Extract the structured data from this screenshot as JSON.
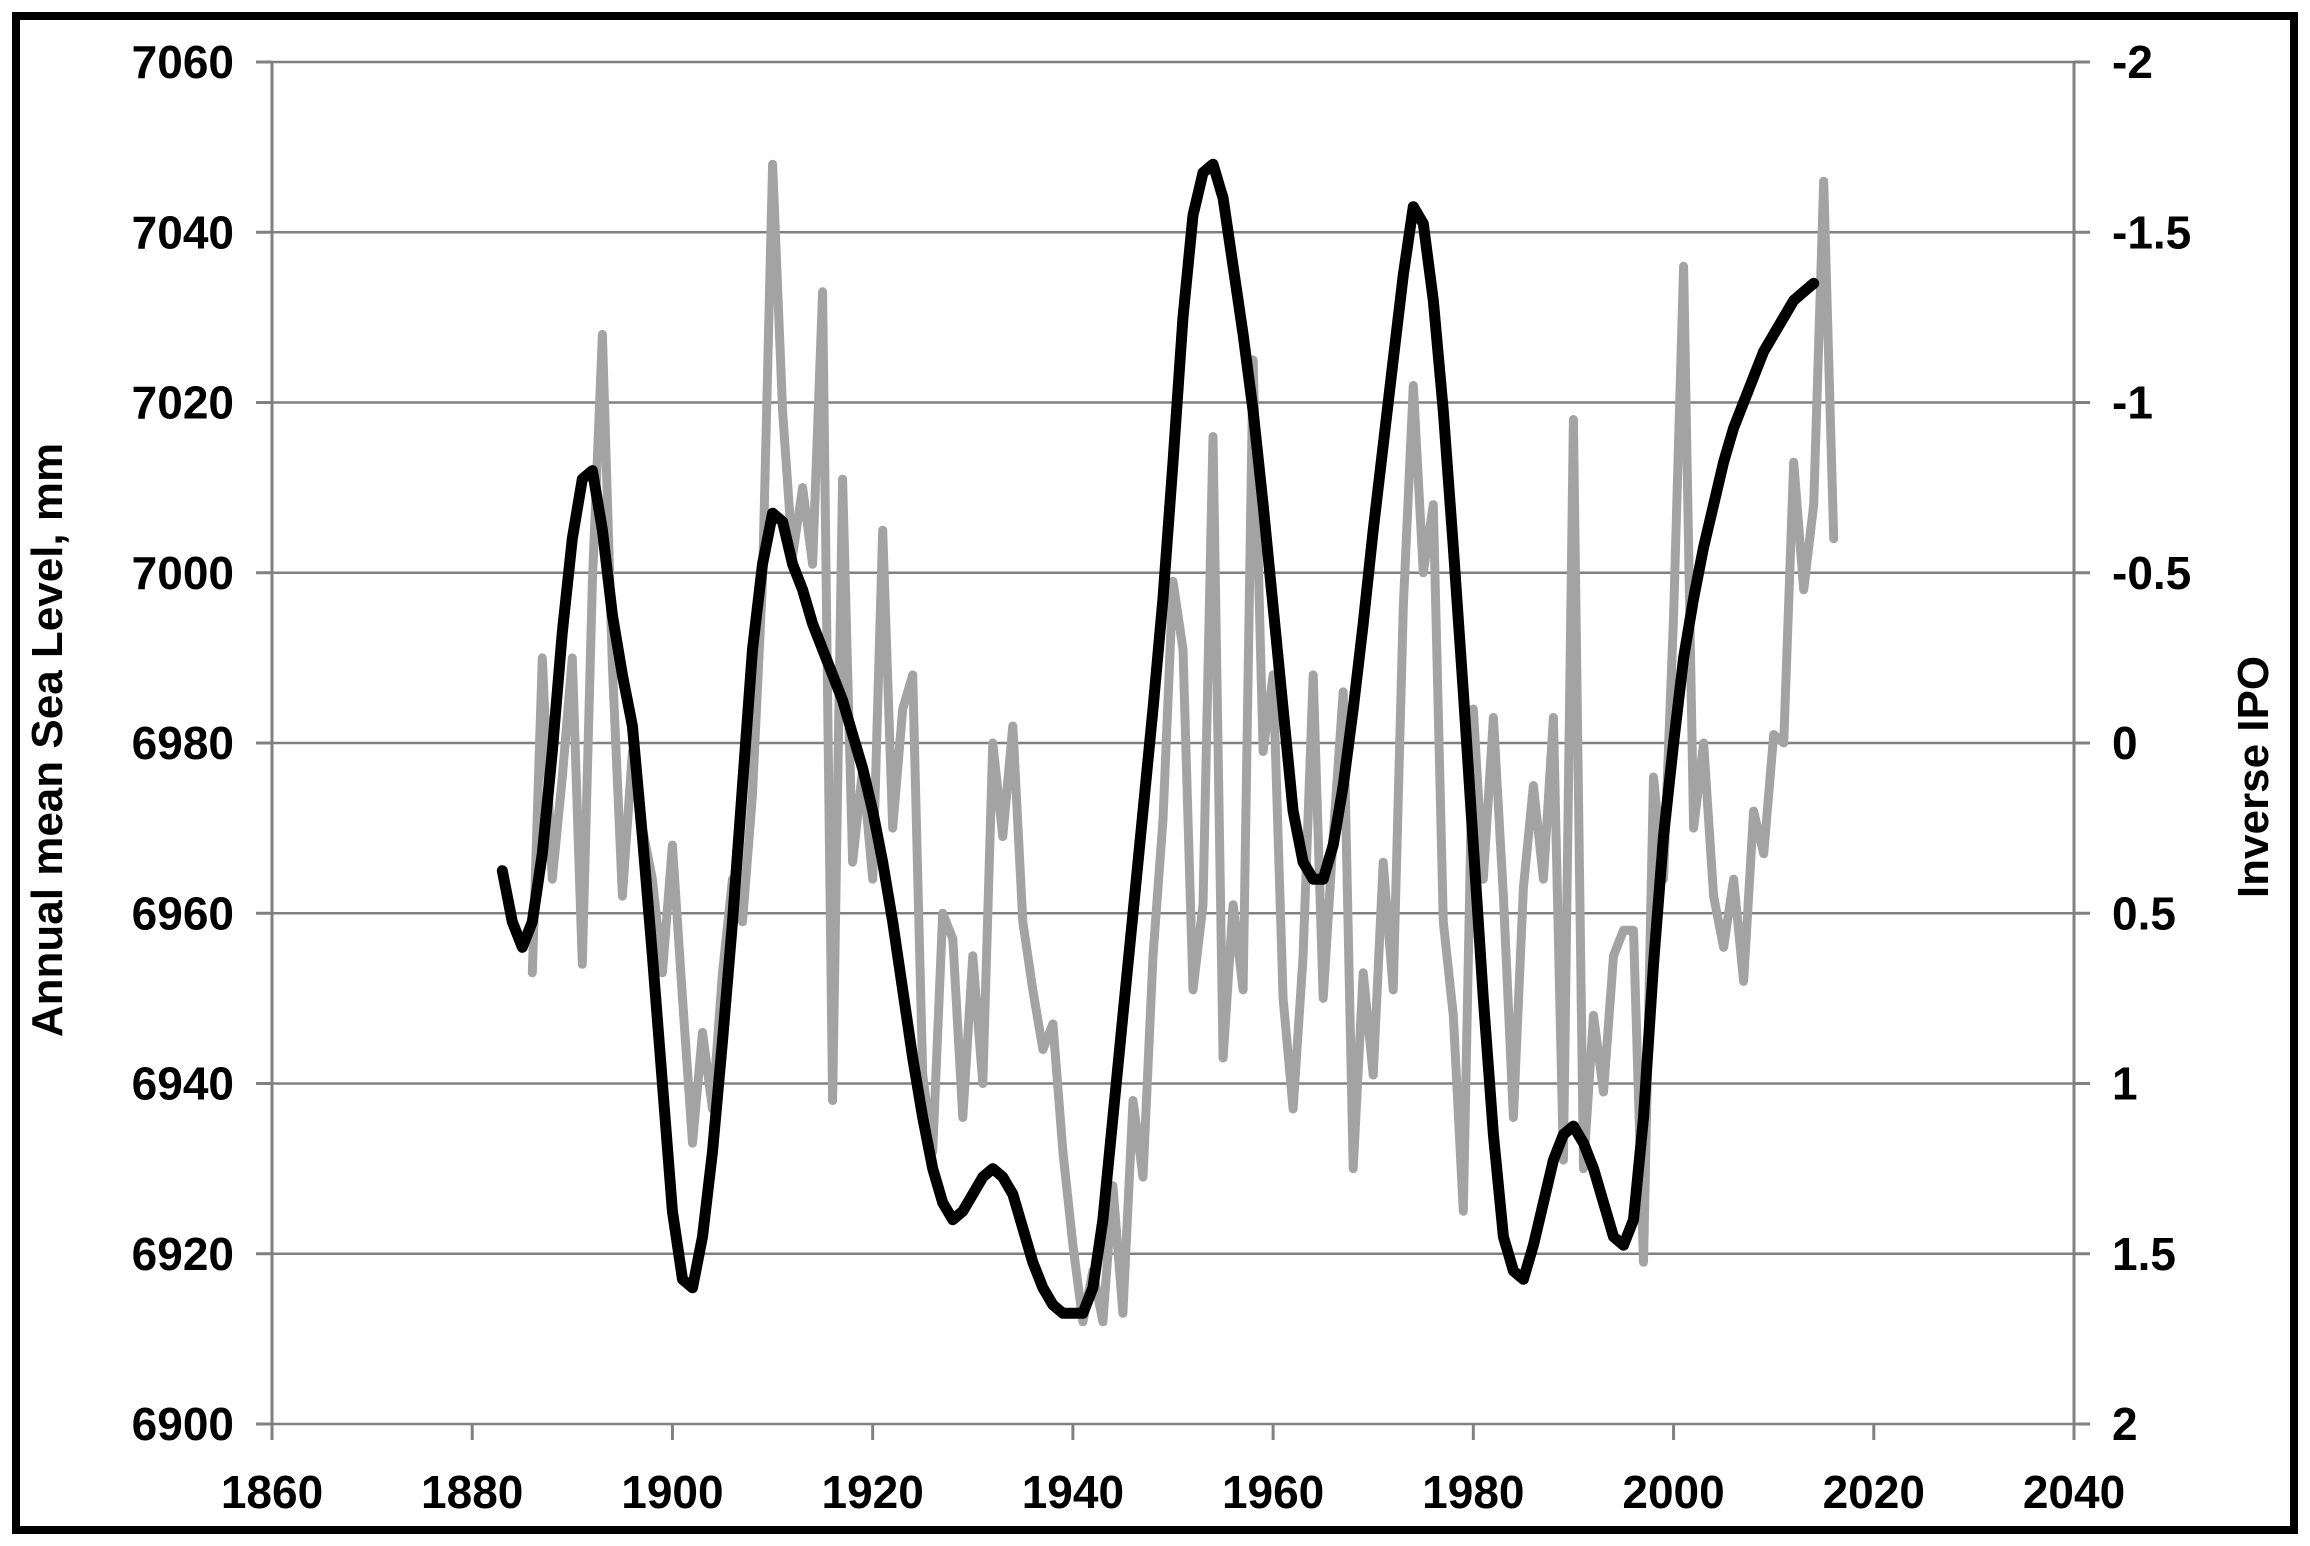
{
  "chart_data": {
    "type": "line",
    "title": "",
    "xlabel": "",
    "ylabel_left": "Annual mean Sea Level, mm",
    "ylabel_right": "Inverse IPO",
    "x_range": [
      1860,
      2040
    ],
    "x_ticks": [
      1860,
      1880,
      1900,
      1920,
      1940,
      1960,
      1980,
      2000,
      2020,
      2040
    ],
    "y_left_range": [
      6900,
      7060
    ],
    "y_left_ticks": [
      7060,
      7040,
      7020,
      7000,
      6980,
      6960,
      6940,
      6920,
      6900
    ],
    "y_right_range_top_to_bottom": [
      -2,
      2
    ],
    "y_right_ticks": [
      "-2",
      "-1.5",
      "-1",
      "-0.5",
      "0",
      "0.5",
      "1",
      "1.5",
      "2"
    ],
    "grid": "horizontal-only",
    "legend": "none",
    "colors": {
      "annual_series": "#a3a3a3",
      "ipo_series": "#000000",
      "gridline": "#808080",
      "frame": "#000000"
    },
    "series": [
      {
        "name": "Annual mean Sea Level",
        "axis": "left",
        "style": "jagged-annual",
        "color": "#a3a3a3",
        "x": [
          1886,
          1887,
          1888,
          1889,
          1890,
          1891,
          1892,
          1893,
          1894,
          1895,
          1896,
          1897,
          1898,
          1899,
          1900,
          1901,
          1902,
          1903,
          1904,
          1905,
          1906,
          1907,
          1908,
          1909,
          1910,
          1911,
          1912,
          1913,
          1914,
          1915,
          1916,
          1917,
          1918,
          1919,
          1920,
          1921,
          1922,
          1923,
          1924,
          1925,
          1926,
          1927,
          1928,
          1929,
          1930,
          1931,
          1932,
          1933,
          1934,
          1935,
          1936,
          1937,
          1938,
          1939,
          1940,
          1941,
          1942,
          1943,
          1944,
          1945,
          1946,
          1947,
          1948,
          1949,
          1950,
          1951,
          1952,
          1953,
          1954,
          1955,
          1956,
          1957,
          1958,
          1959,
          1960,
          1961,
          1962,
          1963,
          1964,
          1965,
          1966,
          1967,
          1968,
          1969,
          1970,
          1971,
          1972,
          1973,
          1974,
          1975,
          1976,
          1977,
          1978,
          1979,
          1980,
          1981,
          1982,
          1983,
          1984,
          1985,
          1986,
          1987,
          1988,
          1989,
          1990,
          1991,
          1992,
          1993,
          1994,
          1995,
          1996,
          1997,
          1998,
          1999,
          2000,
          2001,
          2002,
          2003,
          2004,
          2005,
          2006,
          2007,
          2008,
          2009,
          2010,
          2011,
          2012,
          2013,
          2014,
          2015,
          2016
        ],
        "values": [
          6953,
          6990,
          6964,
          6976,
          6990,
          6954,
          6999,
          7028,
          6989,
          6962,
          6979,
          6970,
          6964,
          6953,
          6968,
          6950,
          6933,
          6946,
          6937,
          6953,
          6964,
          6959,
          6974,
          6999,
          7048,
          7019,
          7002,
          7010,
          7001,
          7033,
          6938,
          7011,
          6966,
          6977,
          6964,
          7005,
          6970,
          6984,
          6988,
          6941,
          6932,
          6960,
          6957,
          6936,
          6955,
          6940,
          6980,
          6969,
          6982,
          6959,
          6951,
          6944,
          6947,
          6932,
          6921,
          6912,
          6918,
          6912,
          6928,
          6913,
          6938,
          6929,
          6955,
          6971,
          6999,
          6991,
          6951,
          6961,
          7016,
          6943,
          6961,
          6951,
          7025,
          6979,
          6988,
          6950,
          6937,
          6955,
          6988,
          6950,
          6969,
          6986,
          6930,
          6953,
          6941,
          6966,
          6951,
          6996,
          7022,
          7000,
          7008,
          6959,
          6948,
          6925,
          6984,
          6964,
          6983,
          6962,
          6936,
          6963,
          6975,
          6964,
          6983,
          6931,
          7018,
          6930,
          6948,
          6939,
          6955,
          6958,
          6958,
          6919,
          6976,
          6964,
          6995,
          7036,
          6970,
          6980,
          6962,
          6956,
          6964,
          6952,
          6972,
          6967,
          6981,
          6980,
          7013,
          6998,
          7008,
          7046,
          7004
        ]
      },
      {
        "name": "Inverse IPO (smoothed)",
        "axis": "right",
        "style": "thick-smooth",
        "color": "#000000",
        "x": [
          1883,
          1884,
          1885,
          1886,
          1887,
          1888,
          1889,
          1890,
          1891,
          1892,
          1893,
          1894,
          1895,
          1896,
          1897,
          1898,
          1899,
          1900,
          1901,
          1902,
          1903,
          1904,
          1905,
          1906,
          1907,
          1908,
          1909,
          1910,
          1911,
          1912,
          1913,
          1914,
          1915,
          1916,
          1917,
          1918,
          1919,
          1920,
          1921,
          1922,
          1923,
          1924,
          1925,
          1926,
          1927,
          1928,
          1929,
          1930,
          1931,
          1932,
          1933,
          1934,
          1935,
          1936,
          1937,
          1938,
          1939,
          1940,
          1941,
          1942,
          1943,
          1944,
          1945,
          1946,
          1947,
          1948,
          1949,
          1950,
          1951,
          1952,
          1953,
          1954,
          1955,
          1956,
          1957,
          1958,
          1959,
          1960,
          1961,
          1962,
          1963,
          1964,
          1965,
          1966,
          1967,
          1968,
          1969,
          1970,
          1971,
          1972,
          1973,
          1974,
          1975,
          1976,
          1977,
          1978,
          1979,
          1980,
          1981,
          1982,
          1983,
          1984,
          1985,
          1986,
          1987,
          1988,
          1989,
          1990,
          1991,
          1992,
          1993,
          1994,
          1995,
          1996,
          1997,
          1998,
          1999,
          2000,
          2001,
          2002,
          2003,
          2004,
          2005,
          2006,
          2007,
          2008,
          2009,
          2010,
          2011,
          2012,
          2013,
          2014
        ],
        "values": [
          0.375,
          0.525,
          0.6,
          0.525,
          0.325,
          0.025,
          -0.325,
          -0.6,
          -0.775,
          -0.8,
          -0.625,
          -0.375,
          -0.2,
          -0.05,
          0.275,
          0.625,
          1.0,
          1.375,
          1.575,
          1.6,
          1.45,
          1.2,
          0.875,
          0.525,
          0.125,
          -0.275,
          -0.525,
          -0.675,
          -0.65,
          -0.525,
          -0.45,
          -0.35,
          -0.275,
          -0.2,
          -0.125,
          -0.025,
          0.075,
          0.2,
          0.35,
          0.525,
          0.725,
          0.925,
          1.1,
          1.25,
          1.35,
          1.4,
          1.375,
          1.325,
          1.275,
          1.25,
          1.275,
          1.325,
          1.425,
          1.525,
          1.6,
          1.65,
          1.675,
          1.675,
          1.675,
          1.6,
          1.4,
          1.1,
          0.8,
          0.5,
          0.2,
          -0.1,
          -0.425,
          -0.825,
          -1.25,
          -1.55,
          -1.675,
          -1.7,
          -1.6,
          -1.4,
          -1.2,
          -0.975,
          -0.7,
          -0.4,
          -0.1,
          0.2,
          0.35,
          0.4,
          0.4,
          0.3,
          0.125,
          -0.1,
          -0.35,
          -0.625,
          -0.875,
          -1.125,
          -1.375,
          -1.575,
          -1.525,
          -1.3,
          -0.975,
          -0.575,
          -0.15,
          0.3,
          0.75,
          1.15,
          1.45,
          1.55,
          1.575,
          1.475,
          1.35,
          1.225,
          1.15,
          1.125,
          1.175,
          1.25,
          1.35,
          1.45,
          1.475,
          1.4,
          1.1,
          0.65,
          0.275,
          0.0,
          -0.25,
          -0.425,
          -0.575,
          -0.7,
          -0.825,
          -0.925,
          -1.0,
          -1.075,
          -1.15,
          -1.2,
          -1.25,
          -1.3,
          -1.325,
          -1.35
        ]
      }
    ]
  }
}
